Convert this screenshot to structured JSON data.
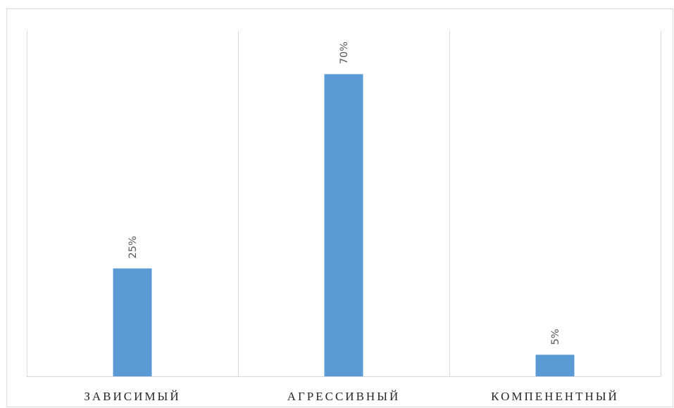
{
  "chart_data": {
    "type": "bar",
    "categories": [
      "ЗАВИСИМЫЙ",
      "АГРЕССИВНЫЙ",
      "КОМПЕНЕНТНЫЙ"
    ],
    "values": [
      25,
      70,
      5
    ],
    "data_labels": [
      "25%",
      "70%",
      "5%"
    ],
    "value_unit": "%",
    "ylim": [
      0,
      80
    ],
    "y_axis_visible": false,
    "grid": "vertical category separators",
    "legend": "none",
    "bar_color": "#5b9bd5",
    "title": "",
    "xlabel": "",
    "ylabel": ""
  }
}
